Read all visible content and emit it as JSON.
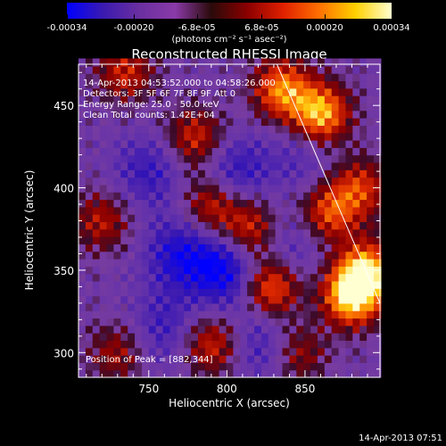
{
  "chart_data": {
    "type": "heatmap",
    "title": "Reconstructed RHESSI Image",
    "xlabel": "Heliocentric X (arcsec)",
    "ylabel": "Heliocentric Y (arcsec)",
    "xlim": [
      705,
      898
    ],
    "ylim": [
      285,
      475
    ],
    "x_ticks": [
      750,
      800,
      850
    ],
    "y_ticks": [
      300,
      350,
      400,
      450
    ],
    "colorbar": {
      "range": [
        -0.00034,
        0.00034
      ],
      "tick_labels": [
        "-0.00034",
        "-0.00020",
        "-6.8e-05",
        "6.8e-05",
        "0.00020",
        "0.00034"
      ],
      "tick_values": [
        -0.00034,
        -0.0002,
        -6.8e-05,
        6.8e-05,
        0.0002,
        0.00034
      ],
      "unit_label": "(photons cm⁻² s⁻¹ asec⁻²)",
      "colormap": [
        "#0000ff",
        "#3a1ab0",
        "#6a2fa0",
        "#8a3aa8",
        "#2a0a0a",
        "#8b0000",
        "#e02000",
        "#ff7000",
        "#ffd000",
        "#ffffd0"
      ]
    },
    "annotations": [
      "14-Apr-2013 04:53:52.000 to 04:58:26.000",
      "Detectors: 3F 5F 6F 7F 8F 9F  Att 0",
      "Energy Range: 25.0 - 50.0 keV",
      "Clean     Total counts: 1.42E+04"
    ],
    "peak_label": "Position of Peak = [882,344]",
    "peak_position": [
      882,
      344
    ],
    "sources": [
      {
        "x": 880,
        "y": 335,
        "intensity": 1.0
      },
      {
        "x": 890,
        "y": 350,
        "intensity": 0.8
      },
      {
        "x": 828,
        "y": 340,
        "intensity": 0.75
      },
      {
        "x": 860,
        "y": 445,
        "intensity": 0.9
      },
      {
        "x": 835,
        "y": 460,
        "intensity": 0.75
      },
      {
        "x": 885,
        "y": 400,
        "intensity": 0.55
      },
      {
        "x": 790,
        "y": 390,
        "intensity": 0.55
      },
      {
        "x": 780,
        "y": 430,
        "intensity": 0.55
      },
      {
        "x": 815,
        "y": 375,
        "intensity": 0.6
      },
      {
        "x": 735,
        "y": 470,
        "intensity": 0.5
      },
      {
        "x": 720,
        "y": 380,
        "intensity": 0.45
      },
      {
        "x": 730,
        "y": 300,
        "intensity": 0.4
      },
      {
        "x": 790,
        "y": 305,
        "intensity": 0.55
      },
      {
        "x": 845,
        "y": 300,
        "intensity": 0.45
      },
      {
        "x": 865,
        "y": 385,
        "intensity": 0.6
      }
    ],
    "negative_regions": [
      {
        "x": 800,
        "y": 350,
        "intensity": 1.0
      },
      {
        "x": 770,
        "y": 360,
        "intensity": 0.8
      },
      {
        "x": 805,
        "y": 410,
        "intensity": 0.7
      },
      {
        "x": 750,
        "y": 410,
        "intensity": 0.6
      },
      {
        "x": 825,
        "y": 305,
        "intensity": 0.6
      },
      {
        "x": 760,
        "y": 315,
        "intensity": 0.55
      },
      {
        "x": 850,
        "y": 420,
        "intensity": 0.4
      },
      {
        "x": 840,
        "y": 365,
        "intensity": 0.45
      }
    ],
    "limb_line": {
      "from": [
        832,
        475
      ],
      "to": [
        898,
        330
      ]
    }
  },
  "footer": {
    "timestamp": "14-Apr-2013 07:51"
  }
}
